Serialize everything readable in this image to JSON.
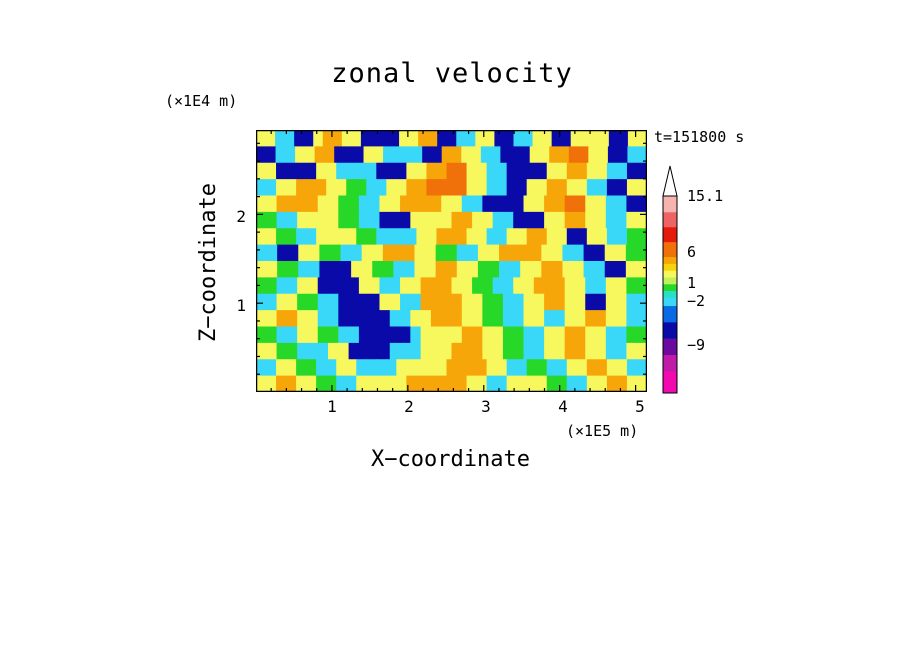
{
  "chart_data": {
    "type": "heatmap",
    "title": "zonal velocity",
    "xlabel": "X−coordinate",
    "ylabel": "Z−coordinate",
    "x_unit_note": "(×1E5 m)",
    "y_unit_note": "(×1E4 m)",
    "time_label": "t=151800 s",
    "xlim": [
      0,
      5.15
    ],
    "ylim": [
      0,
      2.95
    ],
    "x_ticks": [
      "1",
      "2",
      "3",
      "4",
      "5"
    ],
    "y_ticks": [
      "1",
      "2"
    ],
    "colorbar": {
      "labels": [
        "15.1",
        "6",
        "1",
        "−2",
        "−9"
      ],
      "label_values": [
        15.1,
        6,
        1,
        -2,
        -9
      ],
      "colors_top_to_bottom": [
        "#f7b3b0",
        "#ee6363",
        "#e61a0a",
        "#f0700a",
        "#f7a60a",
        "#f7d40a",
        "#f7f75e",
        "#c0f05a",
        "#28d828",
        "#28e0c8",
        "#3ad8f8",
        "#0a6ae6",
        "#0a0aa8",
        "#6a0a9e",
        "#c01aa8",
        "#f00ab0"
      ]
    },
    "field_rows_top_to_bottom": [
      "uussDDuOOuuDDDDuuOODDssuuDDssuuDDuuuuDDuu",
      "DDssuuOODDDuussssDDOOuussDDDuuOORRuuDDss",
      "uuDDDDuussssDDDuuOORRuussDDDDuuOOuussDD",
      "ssuuOOOuuggssuuOORRRRuussDDuuOOuussDDuu",
      "uuOOOOuuggssuuOOOOuussDDDDuuOORRuussDD",
      "ggssuuuuggssDDDuuuuOOuussDDDuuOOuussuu",
      "uuggssuuuuggssssuuOOOuussuuOOuuDDuussgg",
      "ssDDuuggssuuOOOuuggssuuOOOOuussDDuugg",
      "uuggssDDDuuggssuuOOuuggssuuOOuussDDuu",
      "ggssuuDDDDuussuuOOOuuggssuuOOOuussuugg",
      "ssuuggssDDDDuussOOOOuuggssuuOOuuDDuuss",
      "uuOOuussDDDDDssuuOOOuuggssuussuuOOuuss",
      "ggssuuggssDDDDDsuuuuOOuuggssuuOOuussgg",
      "uuggsssuuDDDDsssuuuOOOuuggssuuOOuussuu",
      "ssuuggssuussssuuuuuOOOOuussggssuuOOuuss",
      "uuOOuuggssuuuuuOOOOOOuussuuuuggssuuOOuu"
    ],
    "field_legend": {
      "D": "below -9",
      "d": "-9 to -2",
      "s": "-2 to 0",
      "g": "0 to 1",
      "u": "1 to 3",
      "O": "3 to 6",
      "R": "6 to 15.1"
    }
  },
  "colors": {
    "background": "#ffffff",
    "frame": "#000000"
  }
}
